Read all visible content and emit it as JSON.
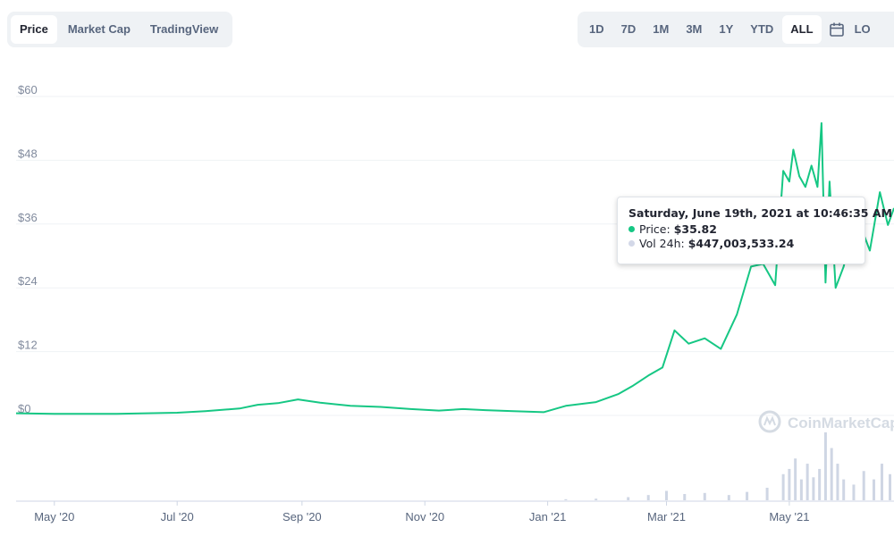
{
  "tabs": [
    {
      "label": "Price",
      "active": true
    },
    {
      "label": "Market Cap",
      "active": false
    },
    {
      "label": "TradingView",
      "active": false
    }
  ],
  "ranges": [
    {
      "label": "1D"
    },
    {
      "label": "7D"
    },
    {
      "label": "1M"
    },
    {
      "label": "3M"
    },
    {
      "label": "1Y"
    },
    {
      "label": "YTD"
    },
    {
      "label": "ALL",
      "active": true
    }
  ],
  "log_label": "LO",
  "watermark": "CoinMarketCap",
  "tooltip": {
    "title": "Saturday, June 19th, 2021 at 10:46:35 AM",
    "price_label": "Price:",
    "price_value": "$35.82",
    "vol_label": "Vol 24h:",
    "vol_value": "$447,003,533.24"
  },
  "colors": {
    "line": "#16c784",
    "volume": "#cfd6e4",
    "grid": "#eff2f5",
    "text": "#58667e",
    "vol_dot": "#d3d8e8"
  },
  "chart_data": {
    "type": "line",
    "yticks": [
      "$60",
      "$48",
      "$36",
      "$24",
      "$12",
      "$0"
    ],
    "ytick_values": [
      60,
      48,
      36,
      24,
      12,
      0
    ],
    "xticks": [
      "May '20",
      "Jul '20",
      "Sep '20",
      "Nov '20",
      "Jan '21",
      "Mar '21",
      "May '21"
    ],
    "xtick_dates": [
      "2020-05-01",
      "2020-07-01",
      "2020-09-01",
      "2020-11-01",
      "2021-01-01",
      "2021-03-01",
      "2021-05-01"
    ],
    "ylim": [
      0,
      60
    ],
    "series": [
      {
        "x": [
          "2020-04-12",
          "2020-05-01",
          "2020-06-01",
          "2020-07-01",
          "2020-07-15",
          "2020-08-01",
          "2020-08-10",
          "2020-08-20",
          "2020-08-30",
          "2020-09-10",
          "2020-09-25",
          "2020-10-10",
          "2020-10-25",
          "2020-11-08",
          "2020-11-20",
          "2020-12-01",
          "2020-12-15",
          "2020-12-30",
          "2021-01-10",
          "2021-01-25",
          "2021-02-05",
          "2021-02-12",
          "2021-02-20",
          "2021-02-27",
          "2021-03-05",
          "2021-03-12",
          "2021-03-20",
          "2021-03-28",
          "2021-04-05",
          "2021-04-12",
          "2021-04-18",
          "2021-04-24",
          "2021-04-28",
          "2021-05-01",
          "2021-05-03",
          "2021-05-06",
          "2021-05-09",
          "2021-05-12",
          "2021-05-15",
          "2021-05-17",
          "2021-05-19",
          "2021-05-21",
          "2021-05-24",
          "2021-05-28",
          "2021-06-03",
          "2021-06-10",
          "2021-06-15",
          "2021-06-19",
          "2021-06-22"
        ],
        "y": [
          0.4,
          0.3,
          0.3,
          0.5,
          0.8,
          1.3,
          2.0,
          2.3,
          3.0,
          2.4,
          1.8,
          1.6,
          1.2,
          0.9,
          1.2,
          1.0,
          0.8,
          0.6,
          1.8,
          2.5,
          4.0,
          5.5,
          7.5,
          9.0,
          16.0,
          13.5,
          14.5,
          12.5,
          19.0,
          28.0,
          28.5,
          24.5,
          46.0,
          44.0,
          50.0,
          45.0,
          43.0,
          47.0,
          43.0,
          55.0,
          25.0,
          44.0,
          24.0,
          28.0,
          38.0,
          31.0,
          42.0,
          35.82,
          39.0
        ]
      }
    ],
    "volume": {
      "x": [
        "2021-01-10",
        "2021-01-25",
        "2021-02-10",
        "2021-02-20",
        "2021-03-01",
        "2021-03-10",
        "2021-03-20",
        "2021-04-01",
        "2021-04-10",
        "2021-04-20",
        "2021-04-28",
        "2021-05-01",
        "2021-05-04",
        "2021-05-07",
        "2021-05-10",
        "2021-05-13",
        "2021-05-16",
        "2021-05-19",
        "2021-05-22",
        "2021-05-25",
        "2021-05-28",
        "2021-06-02",
        "2021-06-07",
        "2021-06-12",
        "2021-06-16",
        "2021-06-20"
      ],
      "values": [
        0.1,
        0.15,
        0.3,
        0.5,
        0.9,
        0.6,
        0.7,
        0.5,
        0.8,
        1.2,
        2.5,
        3.0,
        4.0,
        2.0,
        3.5,
        2.2,
        3.0,
        6.5,
        5.0,
        3.5,
        2.0,
        1.5,
        2.8,
        2.0,
        3.5,
        2.5
      ]
    }
  }
}
